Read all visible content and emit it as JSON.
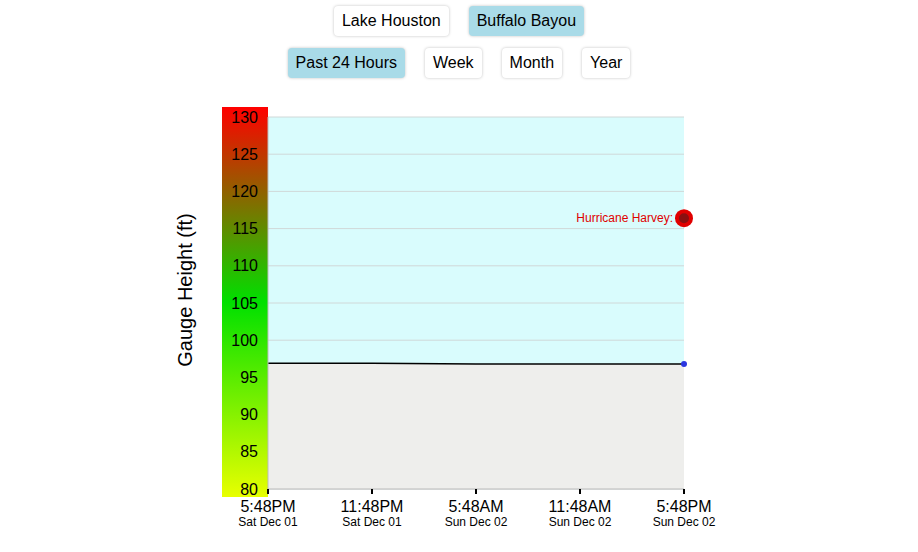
{
  "controls": {
    "sites": [
      "Lake Houston",
      "Buffalo Bayou"
    ],
    "selected_site": "Buffalo Bayou",
    "ranges": [
      "Past 24 Hours",
      "Week",
      "Month",
      "Year"
    ],
    "selected_range": "Past 24 Hours"
  },
  "chart_data": {
    "type": "area",
    "y_label": "Gauge Height (ft)",
    "categories": [
      "5:48PM Sat Dec 01",
      "11:48PM Sat Dec 01",
      "5:48AM Sun Dec 02",
      "11:48AM Sun Dec 02",
      "5:48PM Sun Dec 02"
    ],
    "values": [
      96.9,
      96.9,
      96.8,
      96.8,
      96.8
    ],
    "color": "#000000",
    "ylim": [
      80,
      130
    ],
    "yticks": [
      80,
      85,
      90,
      95,
      100,
      105,
      110,
      115,
      120,
      125,
      130
    ],
    "grid": true,
    "annotations": [
      {
        "text": "Hurricane Harvey:",
        "x": "5:48PM Sun Dec 02",
        "y": 116.4,
        "color": "#e00000"
      }
    ]
  }
}
